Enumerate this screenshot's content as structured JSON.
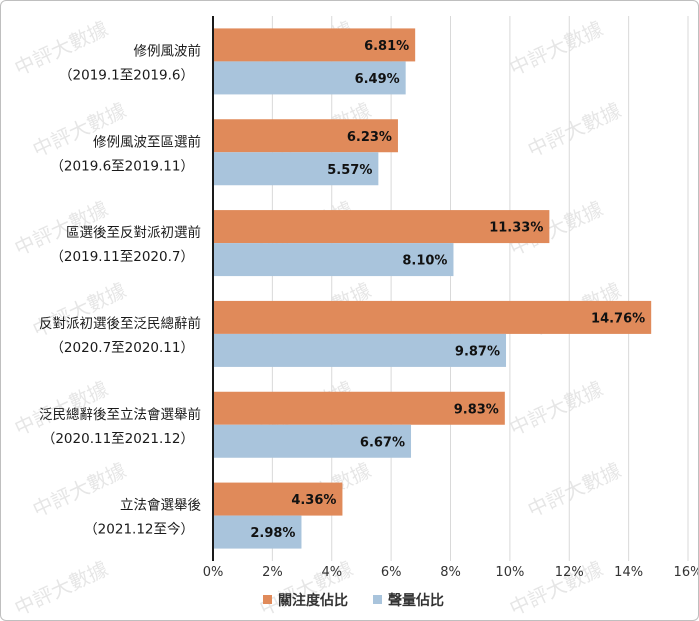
{
  "chart_data": {
    "type": "bar",
    "orientation": "horizontal",
    "categories": [
      [
        "修例風波前",
        "（2019.1至2019.6）"
      ],
      [
        "修例風波至區選前",
        "（2019.6至2019.11）"
      ],
      [
        "區選後至反對派初選前",
        "（2019.11至2020.7）"
      ],
      [
        "反對派初選後至泛民總辭前",
        "（2020.7至2020.11）"
      ],
      [
        "泛民總辭後至立法會選舉前",
        "（2020.11至2021.12）"
      ],
      [
        "立法會選舉後",
        "（2021.12至今）"
      ]
    ],
    "series": [
      {
        "name": "關注度佔比",
        "color": "#e08a5a",
        "values": [
          6.81,
          6.23,
          11.33,
          14.76,
          9.83,
          4.36
        ],
        "labels": [
          "6.81%",
          "6.23%",
          "11.33%",
          "14.76%",
          "9.83%",
          "4.36%"
        ]
      },
      {
        "name": "聲量佔比",
        "color": "#a9c4dc",
        "values": [
          6.49,
          5.57,
          8.1,
          9.87,
          6.67,
          2.98
        ],
        "labels": [
          "6.49%",
          "5.57%",
          "8.10%",
          "9.87%",
          "6.67%",
          "2.98%"
        ]
      }
    ],
    "xlim": [
      0,
      16
    ],
    "xticks": [
      0,
      2,
      4,
      6,
      8,
      10,
      12,
      14,
      16
    ],
    "xtick_labels": [
      "0%",
      "2%",
      "4%",
      "6%",
      "8%",
      "10%",
      "12%",
      "14%",
      "16%"
    ],
    "grid": true,
    "legend_position": "bottom",
    "watermark": "中評大數據"
  }
}
